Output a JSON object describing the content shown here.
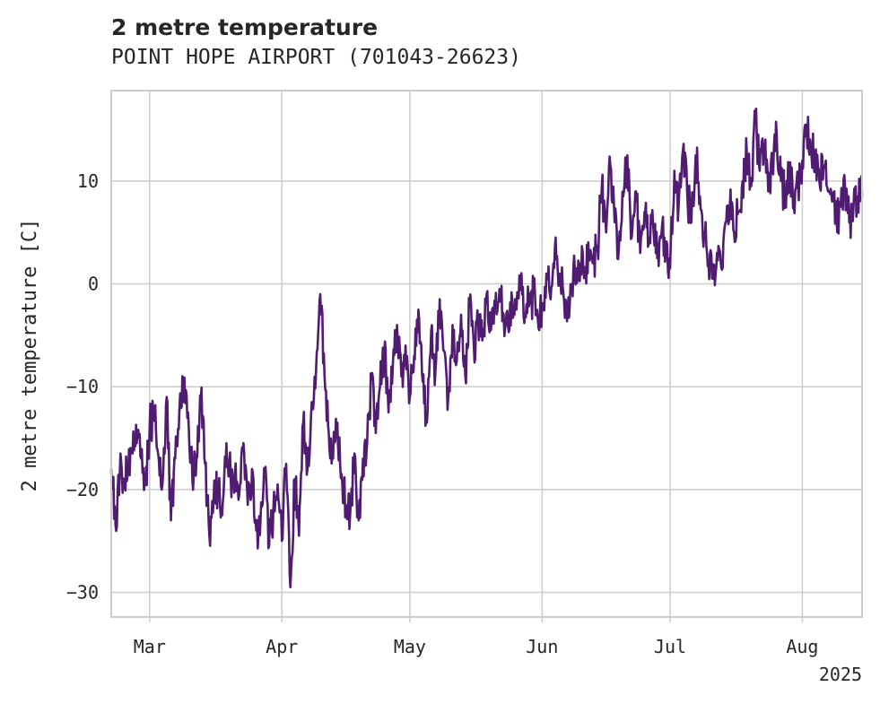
{
  "chart_data": {
    "type": "line",
    "title": "2 metre temperature",
    "subtitle": "POINT HOPE AIRPORT (701043-26623)",
    "ylabel": "2 metre temperature [C]",
    "xlabel": "",
    "x_range": [
      "2025-02-20",
      "2025-08-15"
    ],
    "ylim": [
      -32.4,
      18.8
    ],
    "y_ticks": [
      10,
      0,
      -10,
      -20,
      -30
    ],
    "y_tick_labels": [
      "10",
      "0",
      "−10",
      "−20",
      "−30"
    ],
    "x_ticks": [
      {
        "date": "2025-03-01",
        "label": "Mar"
      },
      {
        "date": "2025-04-01",
        "label": "Apr"
      },
      {
        "date": "2025-05-01",
        "label": "May"
      },
      {
        "date": "2025-06-01",
        "label": "Jun"
      },
      {
        "date": "2025-07-01",
        "label": "Jul"
      },
      {
        "date": "2025-08-01",
        "label": "Aug"
      }
    ],
    "x_offset_label": "2025",
    "grid": true,
    "series": [
      {
        "color": "#4f1c72",
        "points": [
          [
            "2025-02-20",
            -18.0
          ],
          [
            "2025-02-21",
            -23.5
          ],
          [
            "2025-02-22",
            -18.5
          ],
          [
            "2025-02-23",
            -19.0
          ],
          [
            "2025-02-24",
            -18.5
          ],
          [
            "2025-02-25",
            -16.5
          ],
          [
            "2025-02-26",
            -15.5
          ],
          [
            "2025-02-27",
            -17.0
          ],
          [
            "2025-02-28",
            -19.5
          ],
          [
            "2025-03-01",
            -14.0
          ],
          [
            "2025-03-02",
            -12.5
          ],
          [
            "2025-03-03",
            -16.5
          ],
          [
            "2025-03-04",
            -19.5
          ],
          [
            "2025-03-05",
            -11.0
          ],
          [
            "2025-03-06",
            -23.0
          ],
          [
            "2025-03-07",
            -17.0
          ],
          [
            "2025-03-08",
            -12.0
          ],
          [
            "2025-03-09",
            -9.8
          ],
          [
            "2025-03-10",
            -12.5
          ],
          [
            "2025-03-11",
            -19.0
          ],
          [
            "2025-03-12",
            -17.0
          ],
          [
            "2025-03-13",
            -11.0
          ],
          [
            "2025-03-14",
            -17.5
          ],
          [
            "2025-03-15",
            -24.5
          ],
          [
            "2025-03-16",
            -21.0
          ],
          [
            "2025-03-17",
            -20.0
          ],
          [
            "2025-03-18",
            -22.5
          ],
          [
            "2025-03-19",
            -15.5
          ],
          [
            "2025-03-20",
            -19.0
          ],
          [
            "2025-03-21",
            -18.5
          ],
          [
            "2025-03-22",
            -20.5
          ],
          [
            "2025-03-23",
            -15.5
          ],
          [
            "2025-03-24",
            -21.5
          ],
          [
            "2025-03-25",
            -18.0
          ],
          [
            "2025-03-26",
            -24.0
          ],
          [
            "2025-03-27",
            -23.0
          ],
          [
            "2025-03-28",
            -18.5
          ],
          [
            "2025-03-29",
            -25.5
          ],
          [
            "2025-03-30",
            -22.0
          ],
          [
            "2025-03-31",
            -19.5
          ],
          [
            "2025-04-01",
            -25.0
          ],
          [
            "2025-04-02",
            -17.5
          ],
          [
            "2025-04-03",
            -29.5
          ],
          [
            "2025-04-04",
            -19.0
          ],
          [
            "2025-04-05",
            -24.5
          ],
          [
            "2025-04-06",
            -13.5
          ],
          [
            "2025-04-07",
            -18.0
          ],
          [
            "2025-04-08",
            -11.5
          ],
          [
            "2025-04-09",
            -8.5
          ],
          [
            "2025-04-10",
            -1.0
          ],
          [
            "2025-04-11",
            -9.0
          ],
          [
            "2025-04-12",
            -14.5
          ],
          [
            "2025-04-13",
            -17.0
          ],
          [
            "2025-04-14",
            -13.5
          ],
          [
            "2025-04-15",
            -18.5
          ],
          [
            "2025-04-16",
            -21.5
          ],
          [
            "2025-04-17",
            -22.5
          ],
          [
            "2025-04-18",
            -16.5
          ],
          [
            "2025-04-19",
            -23.0
          ],
          [
            "2025-04-20",
            -17.0
          ],
          [
            "2025-04-21",
            -15.5
          ],
          [
            "2025-04-22",
            -9.0
          ],
          [
            "2025-04-23",
            -14.5
          ],
          [
            "2025-04-24",
            -10.0
          ],
          [
            "2025-04-25",
            -6.5
          ],
          [
            "2025-04-26",
            -12.5
          ],
          [
            "2025-04-27",
            -8.0
          ],
          [
            "2025-04-28",
            -4.0
          ],
          [
            "2025-04-29",
            -9.0
          ],
          [
            "2025-04-30",
            -6.0
          ],
          [
            "2025-05-01",
            -11.0
          ],
          [
            "2025-05-02",
            -7.0
          ],
          [
            "2025-05-03",
            -2.5
          ],
          [
            "2025-05-04",
            -9.5
          ],
          [
            "2025-05-05",
            -13.5
          ],
          [
            "2025-05-06",
            -4.5
          ],
          [
            "2025-05-07",
            -8.5
          ],
          [
            "2025-05-08",
            -1.5
          ],
          [
            "2025-05-09",
            -6.5
          ],
          [
            "2025-05-10",
            -11.0
          ],
          [
            "2025-05-11",
            -4.0
          ],
          [
            "2025-05-12",
            -7.5
          ],
          [
            "2025-05-13",
            -3.0
          ],
          [
            "2025-05-14",
            -9.0
          ],
          [
            "2025-05-15",
            -2.0
          ],
          [
            "2025-05-16",
            -6.0
          ],
          [
            "2025-05-17",
            -3.5
          ],
          [
            "2025-05-18",
            -5.5
          ],
          [
            "2025-05-19",
            -1.0
          ],
          [
            "2025-05-20",
            -4.5
          ],
          [
            "2025-05-21",
            -2.5
          ],
          [
            "2025-05-22",
            -0.5
          ],
          [
            "2025-05-23",
            -3.0
          ],
          [
            "2025-05-24",
            -4.0
          ],
          [
            "2025-05-25",
            -1.5
          ],
          [
            "2025-05-26",
            -2.5
          ],
          [
            "2025-05-27",
            -0.5
          ],
          [
            "2025-05-28",
            -3.0
          ],
          [
            "2025-05-29",
            -2.0
          ],
          [
            "2025-05-30",
            -1.0
          ],
          [
            "2025-05-31",
            -3.5
          ],
          [
            "2025-06-01",
            -2.0
          ],
          [
            "2025-06-02",
            1.0
          ],
          [
            "2025-06-03",
            -1.5
          ],
          [
            "2025-06-04",
            3.5
          ],
          [
            "2025-06-05",
            1.0
          ],
          [
            "2025-06-06",
            -1.0
          ],
          [
            "2025-06-07",
            -2.5
          ],
          [
            "2025-06-08",
            0.0
          ],
          [
            "2025-06-09",
            1.5
          ],
          [
            "2025-06-10",
            2.0
          ],
          [
            "2025-06-11",
            1.0
          ],
          [
            "2025-06-12",
            2.5
          ],
          [
            "2025-06-13",
            2.0
          ],
          [
            "2025-06-14",
            3.5
          ],
          [
            "2025-06-15",
            9.5
          ],
          [
            "2025-06-16",
            5.0
          ],
          [
            "2025-06-17",
            11.5
          ],
          [
            "2025-06-18",
            6.0
          ],
          [
            "2025-06-19",
            3.5
          ],
          [
            "2025-06-20",
            8.5
          ],
          [
            "2025-06-21",
            12.5
          ],
          [
            "2025-06-22",
            4.5
          ],
          [
            "2025-06-23",
            9.0
          ],
          [
            "2025-06-24",
            3.0
          ],
          [
            "2025-06-25",
            7.0
          ],
          [
            "2025-06-26",
            4.0
          ],
          [
            "2025-06-27",
            6.0
          ],
          [
            "2025-06-28",
            2.5
          ],
          [
            "2025-06-29",
            5.0
          ],
          [
            "2025-06-30",
            3.5
          ],
          [
            "2025-07-01",
            1.5
          ],
          [
            "2025-07-02",
            11.0
          ],
          [
            "2025-07-03",
            7.5
          ],
          [
            "2025-07-04",
            13.0
          ],
          [
            "2025-07-05",
            9.0
          ],
          [
            "2025-07-06",
            6.0
          ],
          [
            "2025-07-07",
            12.5
          ],
          [
            "2025-07-08",
            8.5
          ],
          [
            "2025-07-09",
            5.0
          ],
          [
            "2025-07-10",
            2.0
          ],
          [
            "2025-07-11",
            0.5
          ],
          [
            "2025-07-12",
            3.0
          ],
          [
            "2025-07-13",
            1.5
          ],
          [
            "2025-07-14",
            6.0
          ],
          [
            "2025-07-15",
            7.5
          ],
          [
            "2025-07-16",
            5.0
          ],
          [
            "2025-07-17",
            7.0
          ],
          [
            "2025-07-18",
            10.0
          ],
          [
            "2025-07-19",
            12.5
          ],
          [
            "2025-07-20",
            9.5
          ],
          [
            "2025-07-21",
            16.0
          ],
          [
            "2025-07-22",
            11.0
          ],
          [
            "2025-07-23",
            13.5
          ],
          [
            "2025-07-24",
            9.0
          ],
          [
            "2025-07-25",
            12.0
          ],
          [
            "2025-07-26",
            14.5
          ],
          [
            "2025-07-27",
            10.0
          ],
          [
            "2025-07-28",
            8.5
          ],
          [
            "2025-07-29",
            11.0
          ],
          [
            "2025-07-30",
            7.5
          ],
          [
            "2025-07-31",
            9.5
          ],
          [
            "2025-08-01",
            12.0
          ],
          [
            "2025-08-02",
            15.5
          ],
          [
            "2025-08-03",
            13.0
          ],
          [
            "2025-08-04",
            12.5
          ],
          [
            "2025-08-05",
            10.0
          ],
          [
            "2025-08-06",
            11.5
          ],
          [
            "2025-08-07",
            9.0
          ],
          [
            "2025-08-08",
            8.0
          ],
          [
            "2025-08-09",
            6.5
          ],
          [
            "2025-08-10",
            7.5
          ],
          [
            "2025-08-11",
            9.5
          ],
          [
            "2025-08-12",
            6.0
          ],
          [
            "2025-08-13",
            7.5
          ],
          [
            "2025-08-14",
            8.5
          ],
          [
            "2025-08-15",
            8.5
          ]
        ]
      }
    ]
  }
}
